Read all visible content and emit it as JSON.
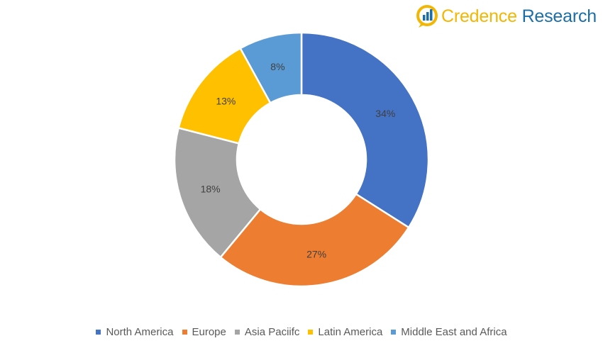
{
  "logo": {
    "word1": "Credence",
    "word2": "Research",
    "icon": "bar-chart-circle-icon"
  },
  "chart_data": {
    "type": "pie",
    "variant": "donut",
    "title": "",
    "categories": [
      "North America",
      "Europe",
      "Asia Paciifc",
      "Latin America",
      "Middle East and Africa"
    ],
    "values": [
      34,
      27,
      18,
      13,
      8
    ],
    "labels": [
      "34%",
      "27%",
      "18%",
      "13%",
      "8%"
    ],
    "colors": [
      "#4472c4",
      "#ed7d31",
      "#a5a5a5",
      "#ffc000",
      "#5b9bd5"
    ],
    "legend_position": "bottom"
  }
}
